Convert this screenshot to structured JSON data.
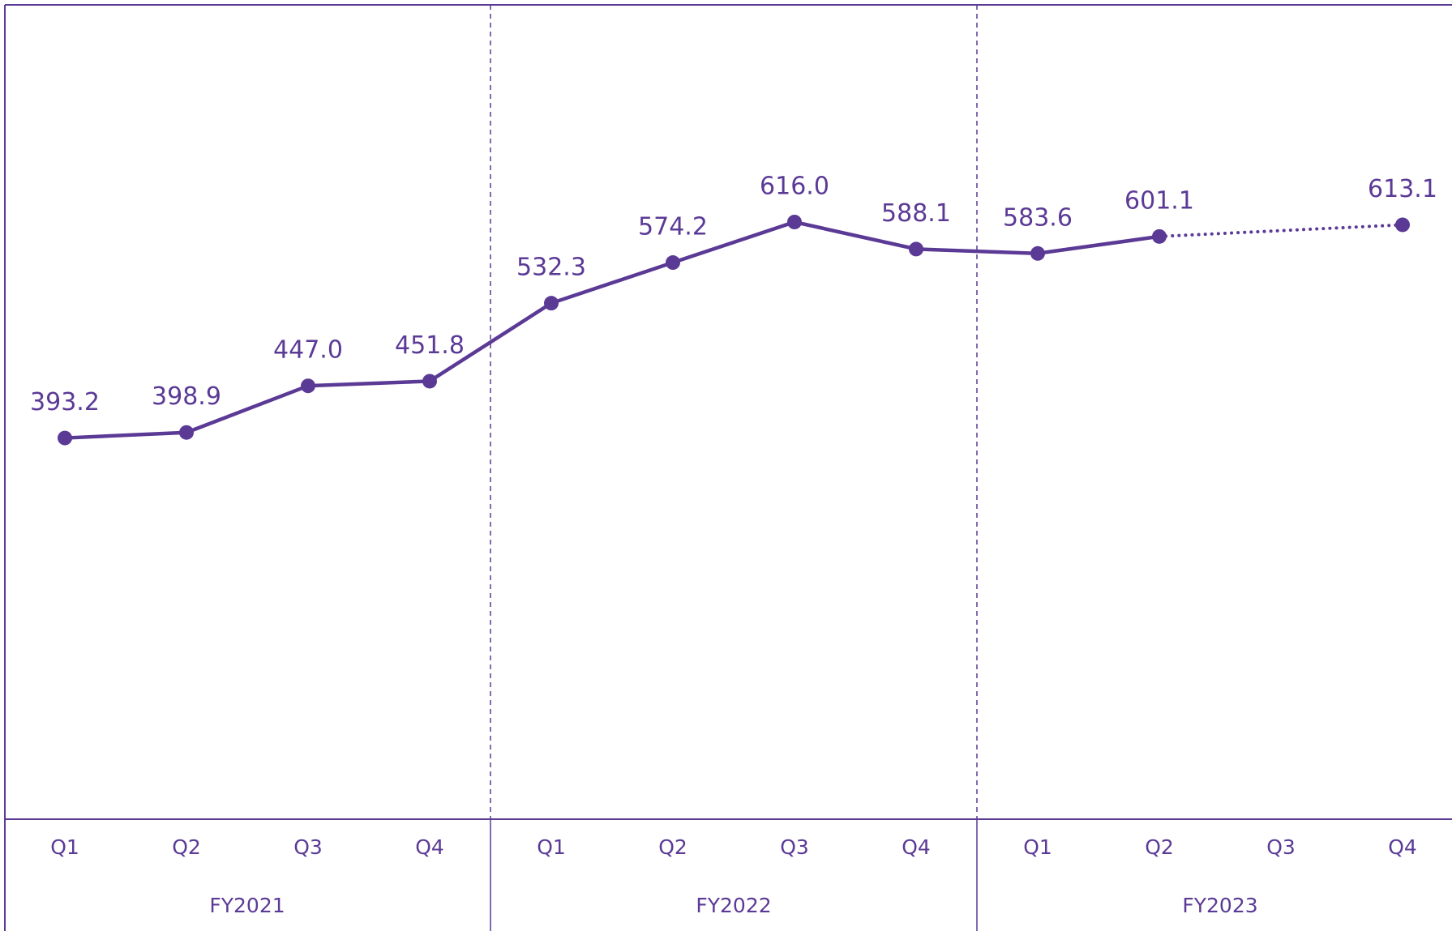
{
  "chart_data": {
    "type": "line",
    "categories": [
      "Q1",
      "Q2",
      "Q3",
      "Q4",
      "Q1",
      "Q2",
      "Q3",
      "Q4",
      "Q1",
      "Q2",
      "Q3",
      "Q4"
    ],
    "groups": [
      {
        "name": "FY2021",
        "count": 4
      },
      {
        "name": "FY2022",
        "count": 4
      },
      {
        "name": "FY2023",
        "count": 4
      }
    ],
    "series": [
      {
        "color": "#5b3a96",
        "values": [
          393.2,
          398.9,
          447.0,
          451.8,
          532.3,
          574.2,
          616.0,
          588.1,
          583.6,
          601.1,
          null,
          613.1
        ],
        "value_labels": [
          "393.2",
          "398.9",
          "447.0",
          "451.8",
          "532.3",
          "574.2",
          "616.0",
          "588.1",
          "583.6",
          "601.1",
          null,
          "613.1"
        ],
        "projection_from_index": 9
      }
    ],
    "ylim": [
      0,
      840
    ]
  }
}
